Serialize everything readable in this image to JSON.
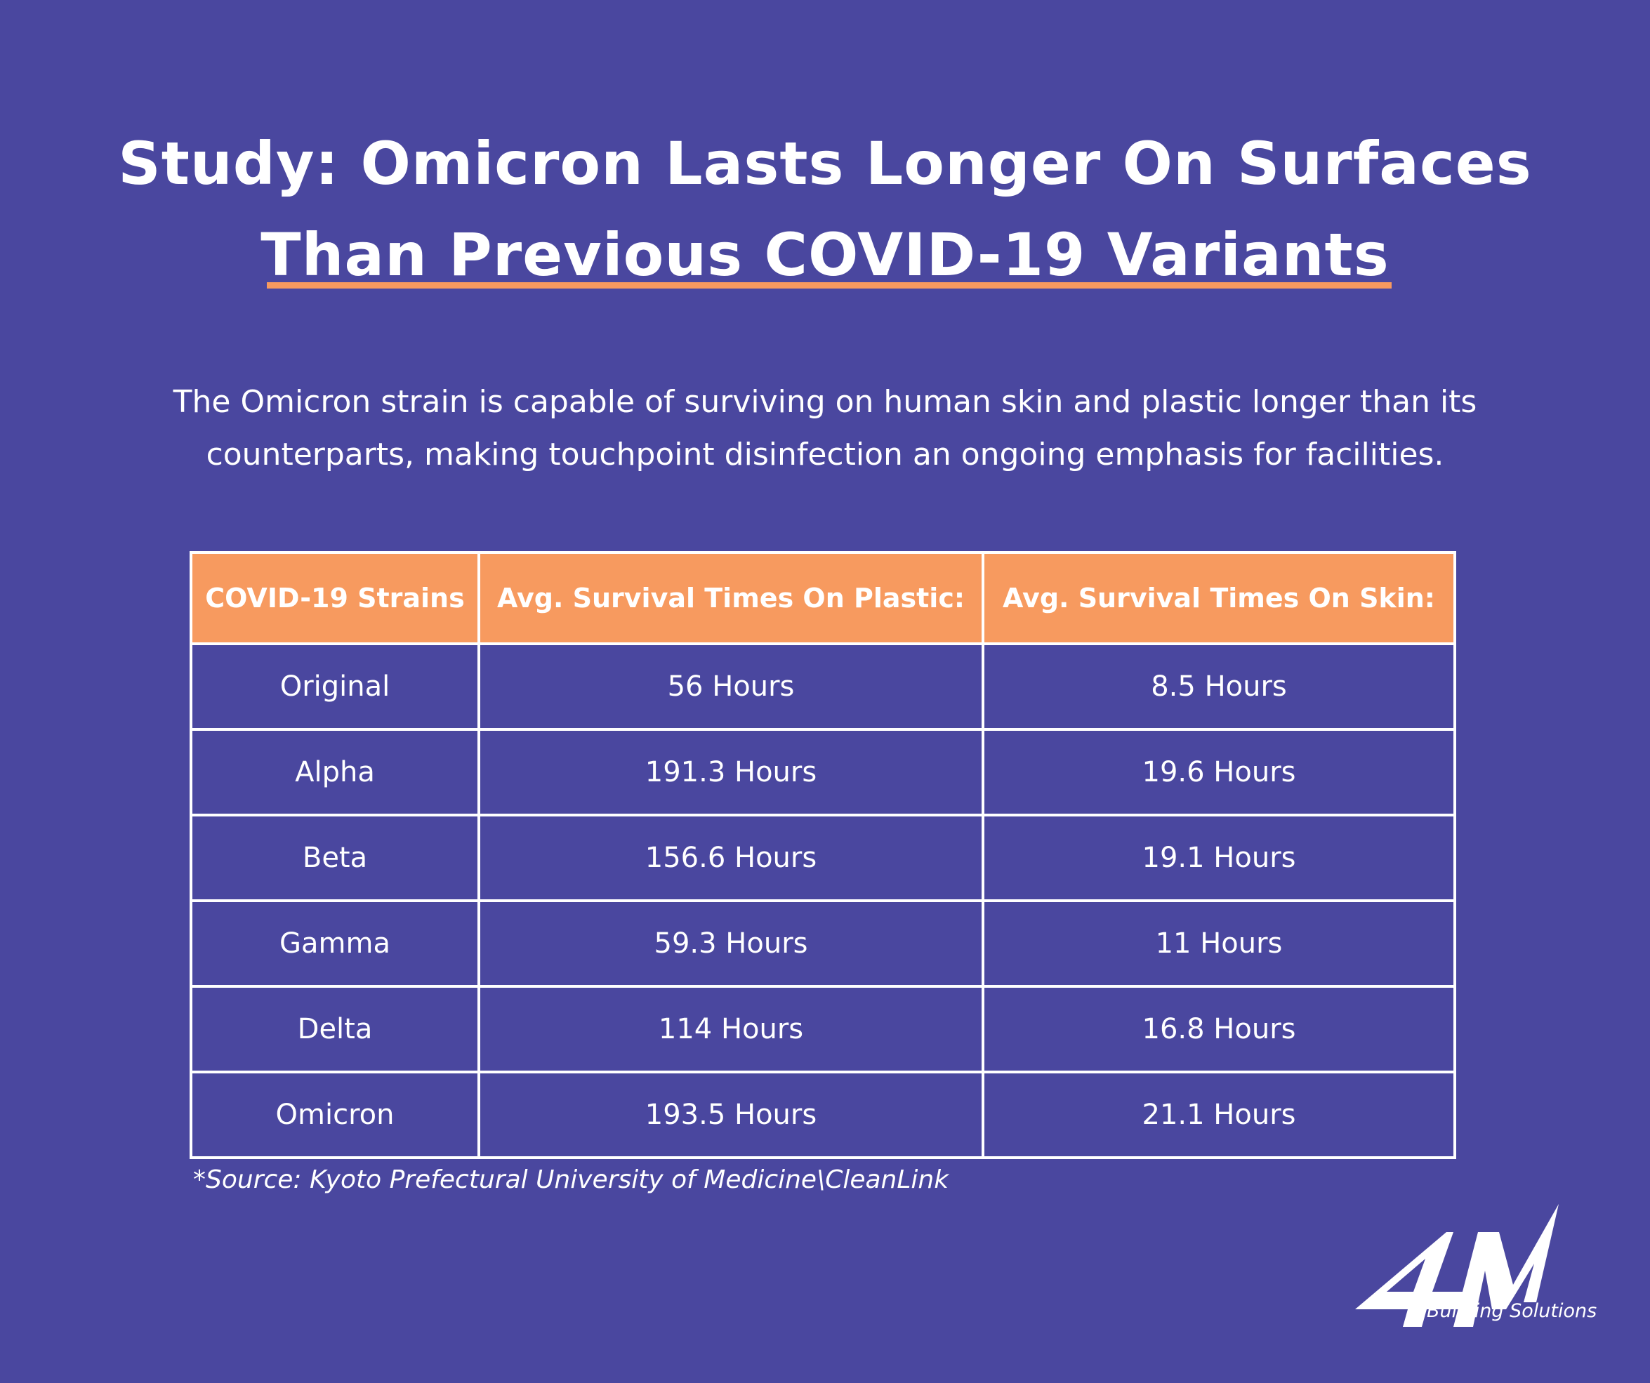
{
  "title": {
    "line1": "Study: Omicron Lasts Longer On Surfaces",
    "line2": "Than Previous COVID-19 Variants"
  },
  "subtitle": {
    "line1": "The Omicron strain is capable of surviving on human skin and plastic longer than its",
    "line2": "counterparts, making touchpoint disinfection an ongoing emphasis for facilities."
  },
  "table": {
    "headers": [
      "COVID-19 Strains",
      "Avg. Survival Times On Plastic:",
      "Avg. Survival Times On Skin:"
    ],
    "rows": [
      [
        "Original",
        "56 Hours",
        "8.5 Hours"
      ],
      [
        "Alpha",
        "191.3 Hours",
        "19.6 Hours"
      ],
      [
        "Beta",
        "156.6 Hours",
        "19.1 Hours"
      ],
      [
        "Gamma",
        "59.3 Hours",
        "11 Hours"
      ],
      [
        "Delta",
        "114 Hours",
        "16.8 Hours"
      ],
      [
        "Omicron",
        "193.5 Hours",
        "21.1 Hours"
      ]
    ]
  },
  "source": "*Source: Kyoto Prefectural University of  Medicine\\CleanLink",
  "logo": {
    "mark": "4M",
    "tagline": "Building Solutions"
  },
  "colors": {
    "background": "#4a479f",
    "accent": "#f79a5f",
    "text": "#ffffff"
  }
}
